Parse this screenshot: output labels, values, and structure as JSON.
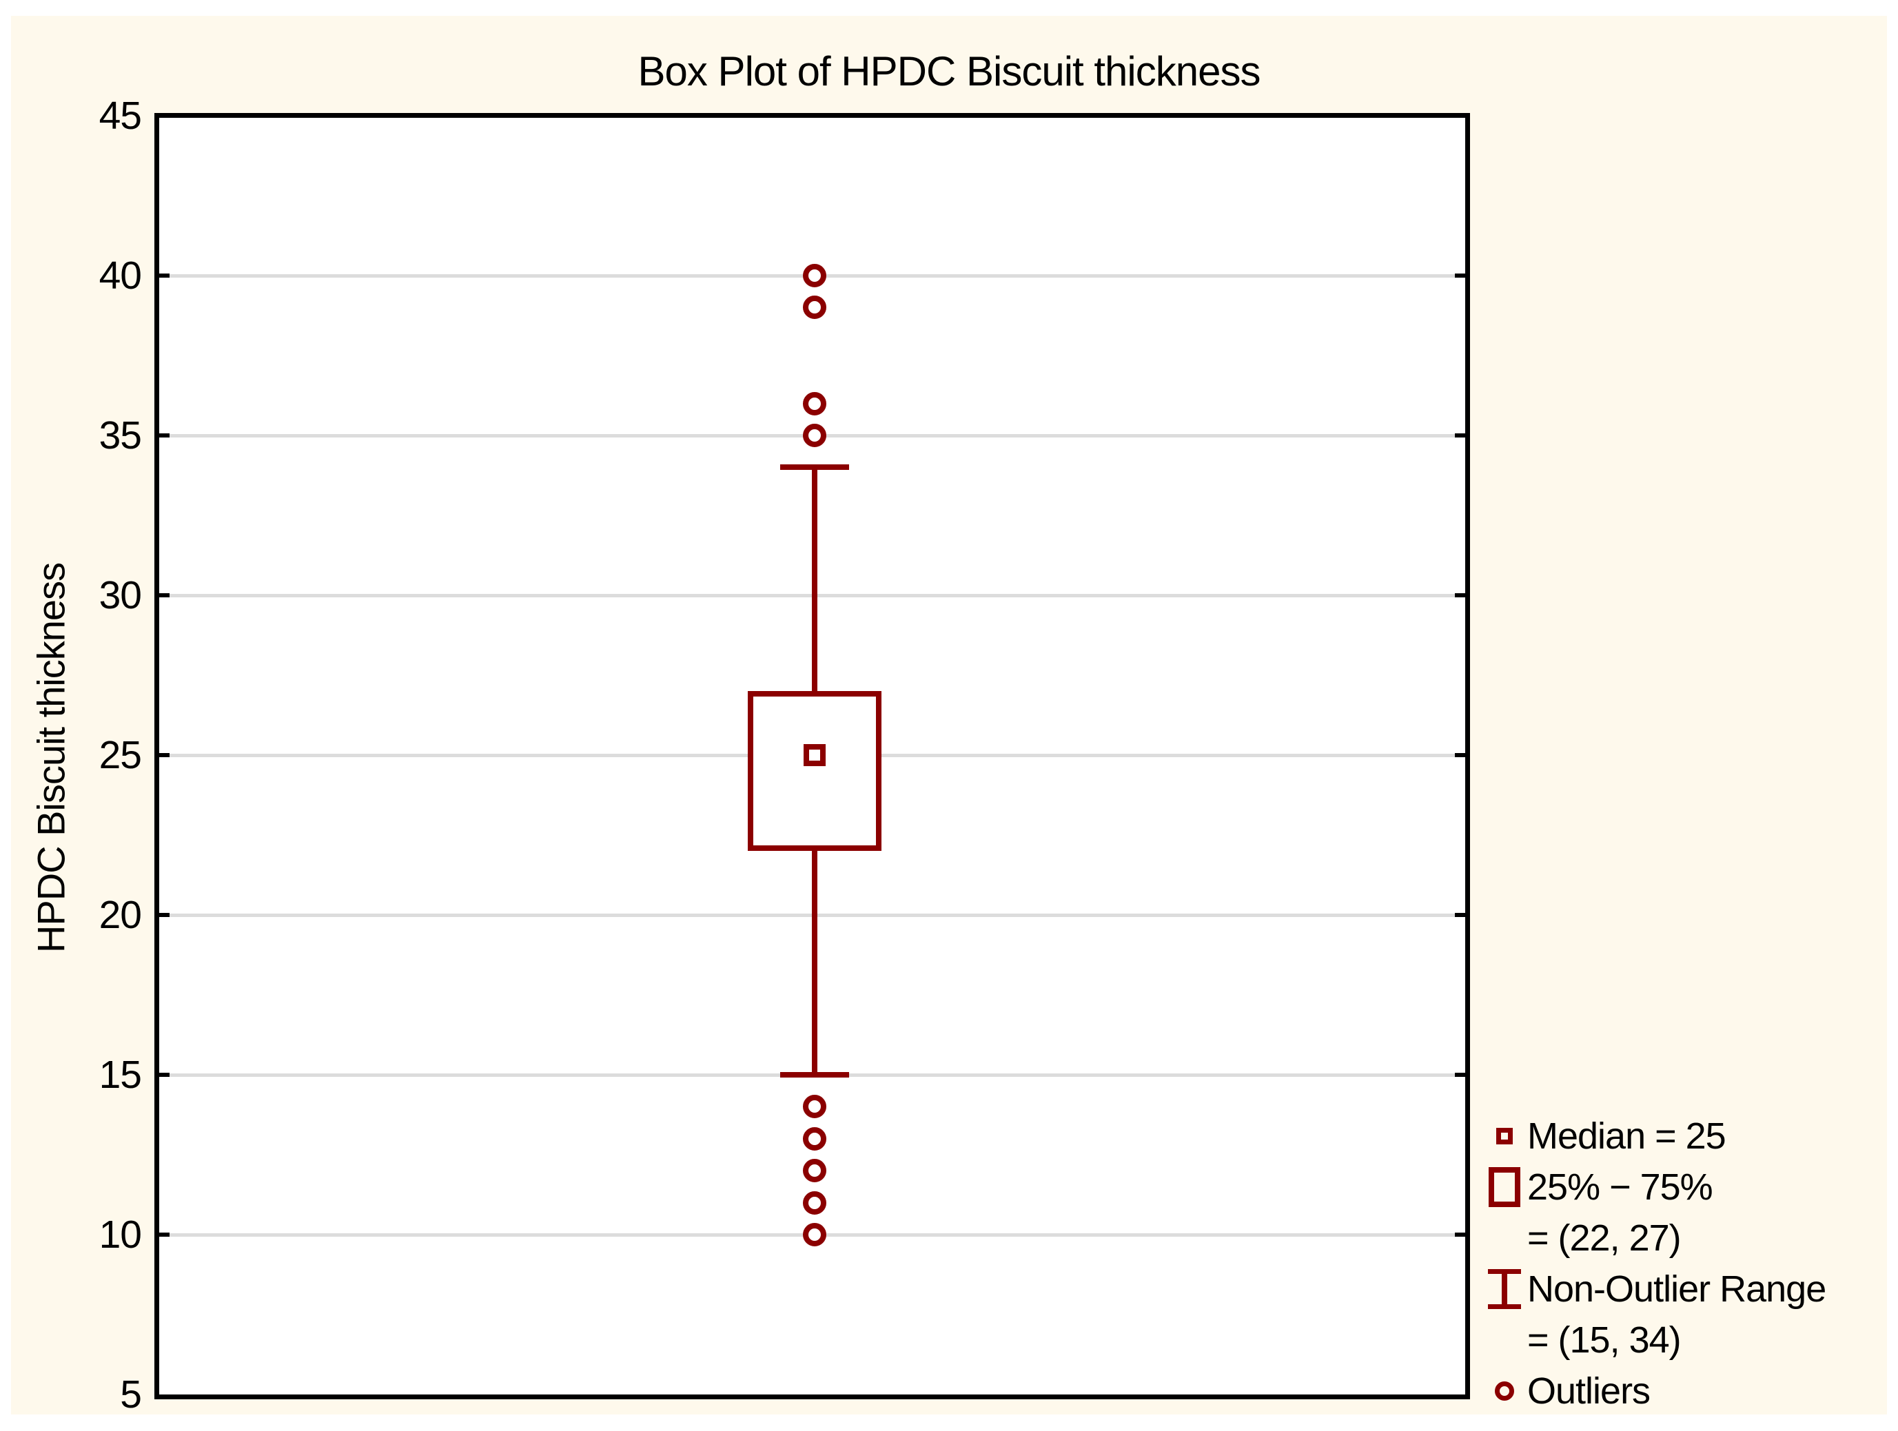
{
  "title": "Box Plot of HPDC Biscuit thickness",
  "y_axis": {
    "label": "HPDC Biscuit thickness"
  },
  "legend": {
    "median_label": "Median = 25",
    "iqr_label": "25% − 75%",
    "iqr_value": "= (22, 27)",
    "range_label": "Non-Outlier Range",
    "range_value": "= (15, 34)",
    "outliers_label": "Outliers"
  },
  "colors": {
    "box": "#8B0000",
    "background": "#FEF9EC",
    "plot_background": "#FFFFFF",
    "gridline": "#DCDCDC",
    "text": "#000000",
    "border": "#000000"
  },
  "chart_data": {
    "type": "box",
    "title": "Box Plot of HPDC Biscuit thickness",
    "xlabel": "",
    "ylabel": "HPDC Biscuit thickness",
    "ylim": [
      5,
      45
    ],
    "yticks": [
      5,
      10,
      15,
      20,
      25,
      30,
      35,
      40,
      45
    ],
    "grid": "horizontal",
    "legend_position": "bottom-right",
    "series": [
      {
        "name": "HPDC Biscuit thickness",
        "median": 25,
        "q1": 22,
        "q3": 27,
        "whisker_low": 15,
        "whisker_high": 34,
        "outliers_high": [
          40,
          39,
          36,
          35
        ],
        "outliers_low": [
          14,
          13,
          12,
          11,
          10
        ]
      }
    ]
  }
}
